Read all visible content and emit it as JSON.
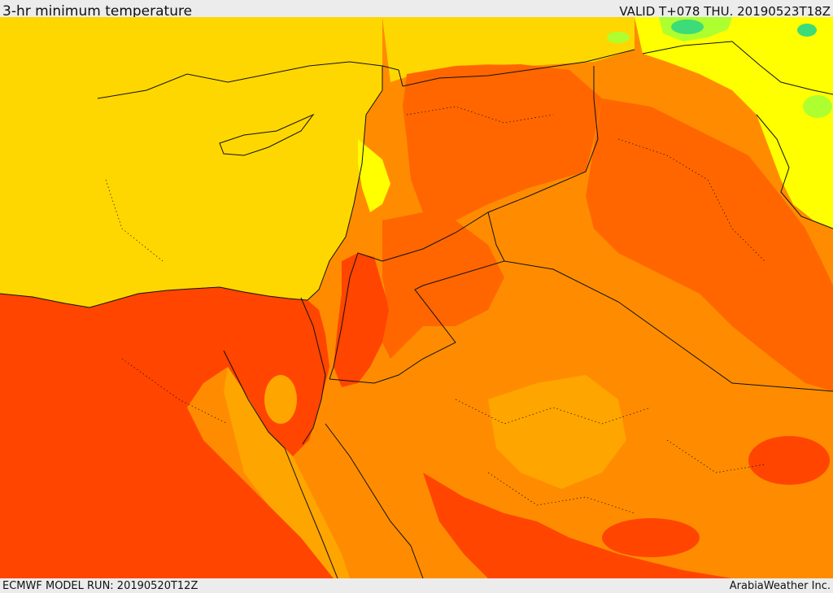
{
  "header": {
    "title": "3-hr minimum temperature",
    "valid": "VALID T+078 THU. 20190523T18Z"
  },
  "footer": {
    "model_run": "ECMWF MODEL RUN: 20190520T12Z",
    "credit": "ArabiaWeather Inc."
  },
  "colors": {
    "sea": "#ffd700",
    "land_mid": "#ff8c00",
    "land_warm": "#ff6600",
    "land_hot": "#ff4500",
    "cool": "#ffff00",
    "cold": "#adff2f",
    "coldest": "#3cdc78",
    "lighter_orange": "#ffa500",
    "border": "#111111"
  }
}
